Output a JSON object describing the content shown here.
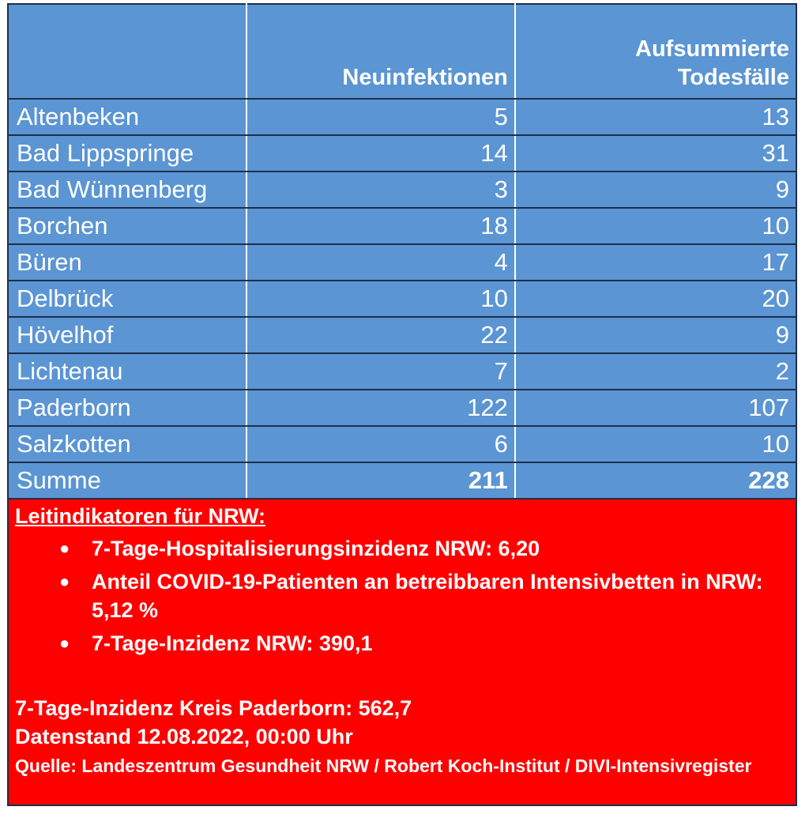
{
  "table": {
    "headers": {
      "name": "",
      "new_infections": "Neuinfektionen",
      "deaths_line1": "Aufsummierte",
      "deaths_line2": "Todesfälle"
    },
    "rows": [
      {
        "name": "Altenbeken",
        "new": "5",
        "deaths": "13"
      },
      {
        "name": "Bad Lippspringe",
        "new": "14",
        "deaths": "31"
      },
      {
        "name": "Bad Wünnenberg",
        "new": "3",
        "deaths": "9"
      },
      {
        "name": "Borchen",
        "new": "18",
        "deaths": "10"
      },
      {
        "name": "Büren",
        "new": "4",
        "deaths": "17"
      },
      {
        "name": "Delbrück",
        "new": "10",
        "deaths": "20"
      },
      {
        "name": "Hövelhof",
        "new": "22",
        "deaths": "9"
      },
      {
        "name": "Lichtenau",
        "new": "7",
        "deaths": "2"
      },
      {
        "name": "Paderborn",
        "new": "122",
        "deaths": "107"
      },
      {
        "name": "Salzkotten",
        "new": "6",
        "deaths": "10"
      }
    ],
    "total": {
      "name": "Summe",
      "new": "211",
      "deaths": "228"
    }
  },
  "indicators": {
    "heading": "Leitindikatoren für NRW:",
    "bullets": [
      "7-Tage-Hospitalisierungsinzidenz NRW: 6,20",
      "Anteil COVID-19-Patienten an betreibbaren Intensivbetten in NRW: 5,12 %",
      "7-Tage-Inzidenz NRW: 390,1"
    ],
    "kreis_incidence": "7-Tage-Inzidenz Kreis Paderborn: 562,7",
    "data_date": "Datenstand 12.08.2022, 00:00 Uhr",
    "source": "Quelle: Landeszentrum Gesundheit NRW / Robert Koch-Institut / DIVI-Intensivregister"
  },
  "colors": {
    "table_bg": "#5b95d3",
    "red_box": "#ff0000",
    "text": "#ffffff"
  }
}
